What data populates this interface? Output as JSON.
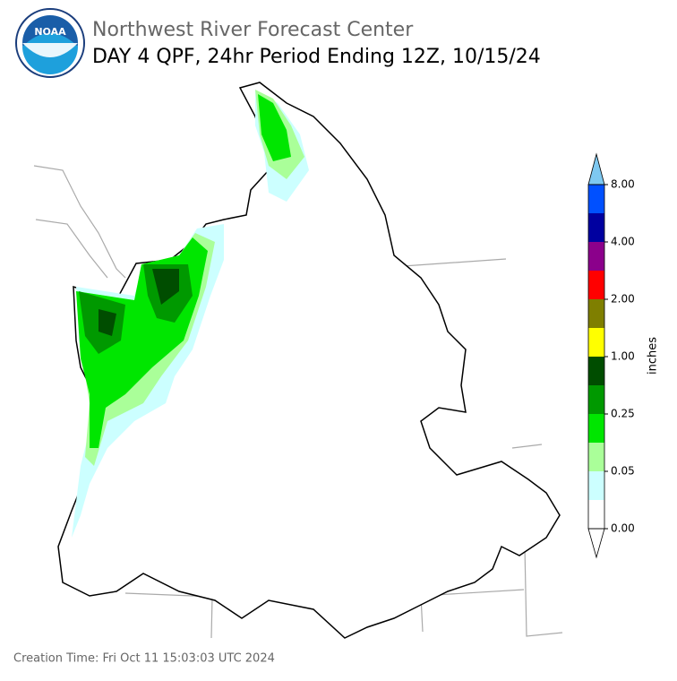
{
  "header": {
    "title": "Northwest River Forecast Center",
    "subtitle": "DAY 4 QPF, 24hr Period Ending 12Z, 10/15/24",
    "logo_text": "NOAA"
  },
  "legend": {
    "label": "inches",
    "ticks": [
      {
        "value": 0,
        "label": "0.00"
      },
      {
        "value": 0.05,
        "label": "0.05"
      },
      {
        "value": 0.25,
        "label": "0.25"
      },
      {
        "value": 1,
        "label": "1.00"
      },
      {
        "value": 2,
        "label": "2.00"
      },
      {
        "value": 4,
        "label": "4.00"
      },
      {
        "value": 8,
        "label": "8.00"
      }
    ],
    "colors": [
      "#ffffff",
      "#ccffff",
      "#aaff99",
      "#00e600",
      "#009900",
      "#004d00",
      "#ffff00",
      "#7f7f00",
      "#ff0000",
      "#8b008b",
      "#0000a0",
      "#0050ff"
    ],
    "under_color": "#ffffff",
    "over_color": "#7ec8f0"
  },
  "footer": {
    "creation_time": "Creation Time: Fri Oct 11 15:03:03 UTC 2024"
  }
}
